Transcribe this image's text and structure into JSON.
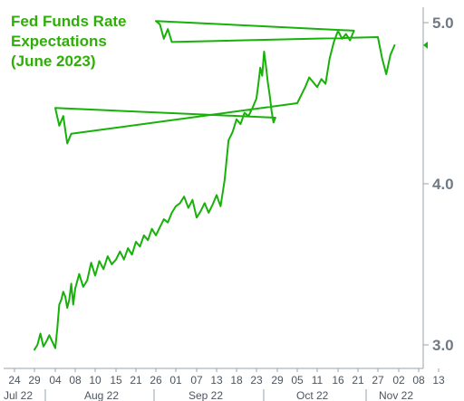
{
  "chart_data": {
    "type": "line",
    "title_lines": [
      "Fed Funds Rate",
      "Expectations",
      "(June 2023)"
    ],
    "xlabel": "",
    "ylabel": "",
    "ylim": [
      2.95,
      5.05
    ],
    "y_ticks": [
      {
        "value": 3.0,
        "label": "3.0"
      },
      {
        "value": 4.0,
        "label": "4.0"
      },
      {
        "value": 5.0,
        "label": "5.0"
      }
    ],
    "x_ticks": [
      "24",
      "29",
      "04",
      "08",
      "10",
      "15",
      "21",
      "26",
      "01",
      "07",
      "13",
      "18",
      "23",
      "29",
      "05",
      "11",
      "16",
      "21",
      "27",
      "02",
      "08",
      "13"
    ],
    "x_months": [
      "Jul 22",
      "Aug 22",
      "Sep 22",
      "Oct 22",
      "Nov 22"
    ],
    "grid": false,
    "colors": {
      "line": "#17b10a",
      "title": "#2fae08",
      "axis": "#9aa3ab"
    },
    "series": [
      {
        "values": [
          [
            "29",
            2.97
          ],
          [
            "29",
            3.0
          ],
          [
            "29",
            3.07
          ],
          [
            "29",
            2.99
          ],
          [
            "29",
            3.02
          ],
          [
            "29",
            3.06
          ],
          [
            "29",
            3.02
          ],
          [
            "04",
            2.98
          ],
          [
            "04",
            3.1
          ],
          [
            "04",
            3.25
          ],
          [
            "04",
            3.28
          ],
          [
            "04",
            3.33
          ],
          [
            "04",
            3.3
          ],
          [
            "04",
            3.23
          ],
          [
            "04",
            3.28
          ],
          [
            "04",
            3.38
          ],
          [
            "04",
            3.25
          ],
          [
            "08",
            3.35
          ],
          [
            "08",
            3.44
          ],
          [
            "08",
            3.36
          ],
          [
            "08",
            3.4
          ],
          [
            "08",
            3.51
          ],
          [
            "10",
            3.43
          ],
          [
            "10",
            3.52
          ],
          [
            "10",
            3.47
          ],
          [
            "10",
            3.55
          ],
          [
            "10",
            3.5
          ],
          [
            "15",
            3.53
          ],
          [
            "15",
            3.58
          ],
          [
            "15",
            3.53
          ],
          [
            "15",
            3.6
          ],
          [
            "15",
            3.56
          ],
          [
            "21",
            3.64
          ],
          [
            "21",
            3.61
          ],
          [
            "21",
            3.68
          ],
          [
            "21",
            3.65
          ],
          [
            "21",
            3.72
          ],
          [
            "26",
            3.68
          ],
          [
            "26",
            3.73
          ],
          [
            "26",
            3.78
          ],
          [
            "26",
            3.76
          ],
          [
            "26",
            3.82
          ],
          [
            "01",
            3.86
          ],
          [
            "01",
            3.88
          ],
          [
            "01",
            3.92
          ],
          [
            "01",
            3.85
          ],
          [
            "01",
            3.9
          ],
          [
            "07",
            3.79
          ],
          [
            "07",
            3.83
          ],
          [
            "07",
            3.88
          ],
          [
            "07",
            3.82
          ],
          [
            "07",
            3.87
          ],
          [
            "13",
            3.93
          ],
          [
            "13",
            3.86
          ],
          [
            "13",
            4.02
          ],
          [
            "13",
            4.27
          ],
          [
            "13",
            4.32
          ],
          [
            "18",
            4.4
          ],
          [
            "18",
            4.37
          ],
          [
            "18",
            4.44
          ],
          [
            "18",
            4.42
          ],
          [
            "18",
            4.47
          ],
          [
            "23",
            4.53
          ],
          [
            "23",
            4.62
          ],
          [
            "23",
            4.72
          ],
          [
            "23",
            4.67
          ],
          [
            "23",
            4.82
          ],
          [
            "23",
            4.73
          ],
          [
            "23",
            4.63
          ],
          [
            "23",
            4.55
          ],
          [
            "23",
            4.45
          ],
          [
            "23",
            4.38
          ],
          [
            "23",
            4.41
          ],
          [
            "29",
            4.47
          ],
          [
            "29",
            4.36
          ],
          [
            "29",
            4.42
          ],
          [
            "29",
            4.25
          ],
          [
            "29",
            4.31
          ],
          [
            "05",
            4.5
          ],
          [
            "05",
            4.55
          ],
          [
            "05",
            4.6
          ],
          [
            "05",
            4.66
          ],
          [
            "05",
            4.63
          ],
          [
            "11",
            4.6
          ],
          [
            "11",
            4.65
          ],
          [
            "11",
            4.62
          ],
          [
            "11",
            4.78
          ],
          [
            "11",
            4.88
          ],
          [
            "16",
            4.95
          ],
          [
            "16",
            4.9
          ],
          [
            "16",
            4.93
          ],
          [
            "16",
            4.89
          ],
          [
            "16",
            4.95
          ],
          [
            "21",
            5.01
          ],
          [
            "21",
            4.99
          ],
          [
            "21",
            4.9
          ],
          [
            "21",
            4.96
          ],
          [
            "21",
            4.88
          ],
          [
            "27",
            4.91
          ],
          [
            "27",
            4.78
          ],
          [
            "27",
            4.68
          ],
          [
            "27",
            4.8
          ],
          [
            "27",
            4.86
          ]
        ]
      }
    ]
  }
}
